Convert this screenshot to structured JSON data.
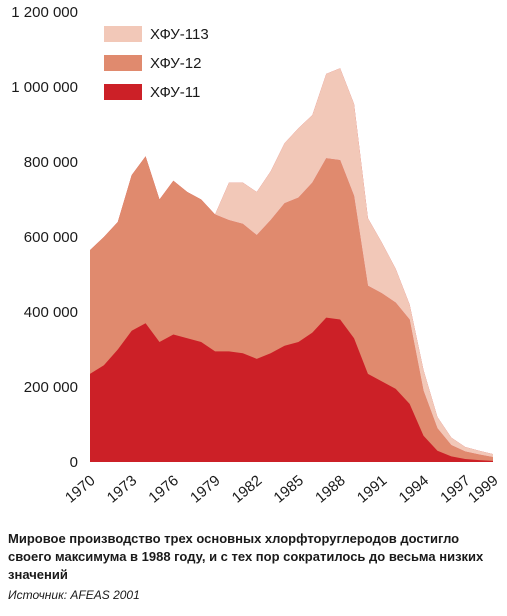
{
  "chart_data": {
    "type": "area",
    "stacked": true,
    "x": [
      1970,
      1971,
      1972,
      1973,
      1974,
      1975,
      1976,
      1977,
      1978,
      1979,
      1980,
      1981,
      1982,
      1983,
      1984,
      1985,
      1986,
      1987,
      1988,
      1989,
      1990,
      1991,
      1992,
      1993,
      1994,
      1995,
      1996,
      1997,
      1998,
      1999
    ],
    "xticks": [
      "1970",
      "1973",
      "1976",
      "1979",
      "1982",
      "1985",
      "1988",
      "1991",
      "1994",
      "1997",
      "1999"
    ],
    "xtick_values": [
      1970,
      1973,
      1976,
      1979,
      1982,
      1985,
      1988,
      1991,
      1994,
      1997,
      1999
    ],
    "yticks": [
      "0",
      "200 000",
      "400 000",
      "600 000",
      "800 000",
      "1 000 000",
      "1 200 000"
    ],
    "ytick_values": [
      0,
      200000,
      400000,
      600000,
      800000,
      1000000,
      1200000
    ],
    "ylim": [
      0,
      1200000
    ],
    "xlim": [
      1970,
      1999
    ],
    "series": [
      {
        "name": "ХФУ-11",
        "color": "#cc2027",
        "values": [
          235000,
          258000,
          300000,
          350000,
          370000,
          320000,
          340000,
          330000,
          320000,
          295000,
          295000,
          290000,
          275000,
          290000,
          310000,
          320000,
          345000,
          385000,
          380000,
          330000,
          235000,
          215000,
          195000,
          155000,
          70000,
          30000,
          15000,
          8000,
          5000,
          3000
        ]
      },
      {
        "name": "ХФУ-12",
        "color": "#e08a6e",
        "values": [
          330000,
          342000,
          340000,
          415000,
          445000,
          380000,
          410000,
          390000,
          380000,
          365000,
          350000,
          345000,
          330000,
          355000,
          380000,
          385000,
          400000,
          425000,
          425000,
          380000,
          235000,
          235000,
          230000,
          225000,
          120000,
          60000,
          30000,
          20000,
          15000,
          10000
        ]
      },
      {
        "name": "ХФУ-113",
        "color": "#f2c8b8",
        "values": [
          0,
          0,
          0,
          0,
          0,
          0,
          0,
          0,
          0,
          0,
          100000,
          110000,
          115000,
          130000,
          160000,
          185000,
          180000,
          225000,
          245000,
          245000,
          180000,
          135000,
          90000,
          40000,
          55000,
          30000,
          20000,
          12000,
          10000,
          8000
        ]
      }
    ],
    "legend_order": [
      "ХФУ-113",
      "ХФУ-12",
      "ХФУ-11"
    ],
    "legend_position": "top-left",
    "grid": false,
    "title": "",
    "xlabel": "",
    "ylabel": ""
  },
  "caption": "Мировое производство трех основных хлорфторуглеродов достигло своего максимума в 1988 году, и с тех пор сократилось до весьма низких значений",
  "source": "Источник: AFEAS 2001"
}
